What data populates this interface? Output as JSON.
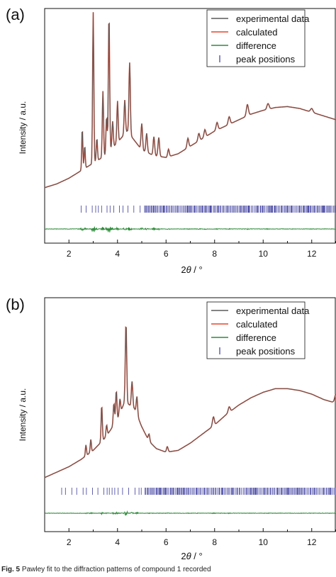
{
  "chart_data": [
    {
      "type": "line",
      "panel_label": "(a)",
      "ylabel": "Intensity / a.u.",
      "xlabel": "2θ / °",
      "xlabel_parts": [
        "2",
        "θ",
        " / °"
      ],
      "xlim": [
        1,
        13
      ],
      "xticks": [
        2,
        4,
        6,
        8,
        10,
        12
      ],
      "grid": false,
      "legend_position": "top-right",
      "legend": [
        "experimental data",
        "calculated",
        "difference",
        "peak positions"
      ],
      "colors": {
        "experimental": "#5a5a5a",
        "calculated": "#e8452c",
        "difference": "#2e8b3a",
        "ticks": "#3b3b9c"
      },
      "background": [
        [
          1.0,
          0.08
        ],
        [
          1.5,
          0.1
        ],
        [
          2.0,
          0.13
        ],
        [
          2.5,
          0.17
        ],
        [
          3.0,
          0.21
        ],
        [
          3.5,
          0.25
        ],
        [
          4.0,
          0.32
        ],
        [
          4.4,
          0.38
        ],
        [
          4.7,
          0.33
        ],
        [
          5.0,
          0.28
        ],
        [
          5.5,
          0.25
        ],
        [
          6.0,
          0.24
        ],
        [
          6.5,
          0.26
        ],
        [
          7.0,
          0.3
        ],
        [
          7.5,
          0.34
        ],
        [
          8.0,
          0.38
        ],
        [
          8.5,
          0.41
        ],
        [
          9.0,
          0.44
        ],
        [
          9.5,
          0.47
        ],
        [
          10.0,
          0.49
        ],
        [
          10.5,
          0.505
        ],
        [
          11.0,
          0.51
        ],
        [
          11.5,
          0.5
        ],
        [
          12.0,
          0.48
        ],
        [
          12.5,
          0.46
        ],
        [
          13.0,
          0.44
        ]
      ],
      "peaks": [
        [
          2.55,
          0.22
        ],
        [
          2.65,
          0.12
        ],
        [
          3.0,
          0.8
        ],
        [
          3.15,
          0.12
        ],
        [
          3.4,
          0.35
        ],
        [
          3.55,
          0.2
        ],
        [
          3.65,
          0.73
        ],
        [
          3.8,
          0.14
        ],
        [
          4.0,
          0.22
        ],
        [
          4.3,
          0.18
        ],
        [
          4.5,
          0.38
        ],
        [
          5.0,
          0.14
        ],
        [
          5.2,
          0.1
        ],
        [
          5.5,
          0.1
        ],
        [
          5.7,
          0.1
        ],
        [
          6.1,
          0.04
        ],
        [
          6.9,
          0.05
        ],
        [
          7.35,
          0.04
        ],
        [
          7.6,
          0.04
        ],
        [
          8.1,
          0.04
        ],
        [
          8.6,
          0.04
        ],
        [
          9.35,
          0.06
        ],
        [
          10.2,
          0.03
        ],
        [
          12.0,
          0.02
        ]
      ],
      "peak_positions_markers": "dense from 2.5 to 13"
    },
    {
      "type": "line",
      "panel_label": "(b)",
      "ylabel": "Intensity / a.u.",
      "xlabel": "2θ / °",
      "xlabel_parts": [
        "2",
        "θ",
        " / °"
      ],
      "xlim": [
        1,
        13
      ],
      "xticks": [
        2,
        4,
        6,
        8,
        10,
        12
      ],
      "grid": false,
      "legend_position": "top-right",
      "legend": [
        "experimental data",
        "calculated",
        "difference",
        "peak positions"
      ],
      "colors": {
        "experimental": "#5a5a5a",
        "calculated": "#e8452c",
        "difference": "#2e8b3a",
        "ticks": "#3b3b9c"
      },
      "background": [
        [
          1.0,
          0.04
        ],
        [
          1.5,
          0.07
        ],
        [
          2.0,
          0.1
        ],
        [
          2.5,
          0.14
        ],
        [
          3.0,
          0.19
        ],
        [
          3.5,
          0.26
        ],
        [
          4.0,
          0.36
        ],
        [
          4.3,
          0.46
        ],
        [
          4.7,
          0.42
        ],
        [
          5.0,
          0.32
        ],
        [
          5.3,
          0.24
        ],
        [
          5.6,
          0.2
        ],
        [
          6.0,
          0.18
        ],
        [
          6.5,
          0.19
        ],
        [
          7.0,
          0.23
        ],
        [
          7.5,
          0.28
        ],
        [
          8.0,
          0.33
        ],
        [
          8.5,
          0.39
        ],
        [
          9.0,
          0.44
        ],
        [
          9.5,
          0.48
        ],
        [
          10.0,
          0.51
        ],
        [
          10.5,
          0.53
        ],
        [
          11.0,
          0.53
        ],
        [
          11.5,
          0.52
        ],
        [
          12.0,
          0.5
        ],
        [
          12.5,
          0.47
        ],
        [
          13.0,
          0.45
        ]
      ],
      "peaks": [
        [
          2.7,
          0.06
        ],
        [
          2.9,
          0.07
        ],
        [
          3.35,
          0.2
        ],
        [
          3.55,
          0.06
        ],
        [
          3.85,
          0.12
        ],
        [
          3.95,
          0.17
        ],
        [
          4.1,
          0.08
        ],
        [
          4.35,
          0.44
        ],
        [
          4.6,
          0.14
        ],
        [
          4.8,
          0.1
        ],
        [
          5.3,
          0.04
        ],
        [
          6.05,
          0.03
        ],
        [
          7.95,
          0.05
        ],
        [
          8.6,
          0.03
        ],
        [
          13.0,
          0.05
        ]
      ],
      "peak_positions_markers": "dense from 1.7 to 13"
    }
  ],
  "caption": {
    "bold": "Fig. 5",
    "text": "  Pawley fit to the diffraction patterns of compound 1 recorded"
  }
}
